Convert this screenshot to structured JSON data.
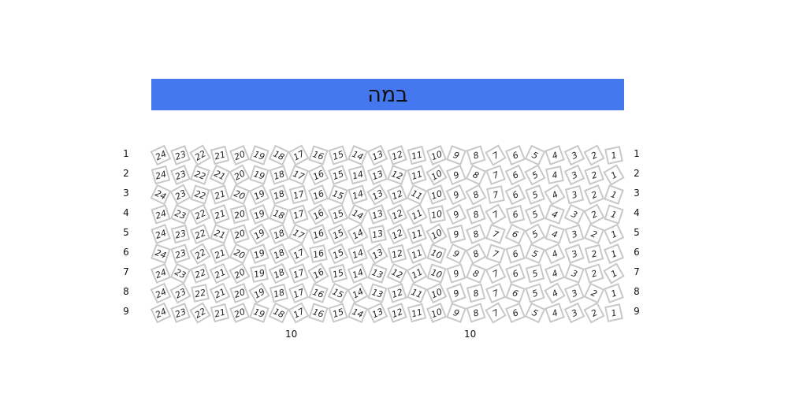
{
  "stage": {
    "label": "במה",
    "color": "#4577ee"
  },
  "rows": [
    "1",
    "2",
    "3",
    "4",
    "5",
    "6",
    "7",
    "8",
    "9"
  ],
  "seats": [
    "24",
    "23",
    "22",
    "21",
    "20",
    "19",
    "18",
    "17",
    "16",
    "15",
    "14",
    "13",
    "12",
    "11",
    "10",
    "9",
    "8",
    "7",
    "6",
    "5",
    "4",
    "3",
    "2",
    "1"
  ],
  "extra_labels": [
    "10",
    "10"
  ],
  "colors": {
    "seat_border": "#c8c8c8"
  }
}
